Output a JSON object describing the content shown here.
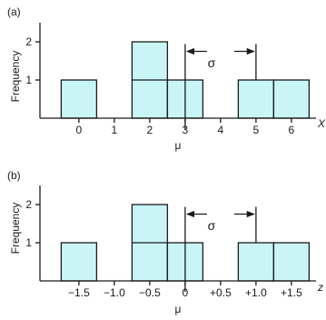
{
  "colors": {
    "bar_fill": "#c9f5f7",
    "bar_stroke": "#1a1a1a",
    "axis": "#1a1a1a"
  },
  "chart_data": [
    {
      "type": "bar",
      "panel_label": "(a)",
      "ylabel": "Frequency",
      "xlabel": "X",
      "mean_label": "μ",
      "sigma_label": "σ",
      "ylim": [
        0,
        2.5
      ],
      "yticks": [
        1,
        2
      ],
      "xlim": [
        -1.1,
        6.9
      ],
      "xticks": [
        {
          "value": 0,
          "label": "0"
        },
        {
          "value": 1,
          "label": "1"
        },
        {
          "value": 2,
          "label": "2"
        },
        {
          "value": 3,
          "label": "3"
        },
        {
          "value": 4,
          "label": "4"
        },
        {
          "value": 5,
          "label": "5"
        },
        {
          "value": 6,
          "label": "6"
        }
      ],
      "bars": [
        {
          "x_start": -0.5,
          "x_end": 0.5,
          "frequency": 1
        },
        {
          "x_start": 1.5,
          "x_end": 2.5,
          "frequency": 2
        },
        {
          "x_start": 2.5,
          "x_end": 3.5,
          "frequency": 1
        },
        {
          "x_start": 4.5,
          "x_end": 5.5,
          "frequency": 1
        },
        {
          "x_start": 5.5,
          "x_end": 6.5,
          "frequency": 1
        }
      ],
      "mean": 3,
      "mean_tick_at": 2,
      "sigma_span": [
        3,
        5
      ],
      "sigma_arrow_y": 1.75
    },
    {
      "type": "bar",
      "panel_label": "(b)",
      "ylabel": "Frequency",
      "xlabel": "z",
      "mean_label": "μ",
      "sigma_label": "σ",
      "ylim": [
        0,
        2.5
      ],
      "yticks": [
        1,
        2
      ],
      "xlim": [
        -2.05,
        1.95
      ],
      "xticks": [
        {
          "value": -1.5,
          "label": "−1.5"
        },
        {
          "value": -1.0,
          "label": "−1.0"
        },
        {
          "value": -0.5,
          "label": "−0.5"
        },
        {
          "value": 0,
          "label": "0"
        },
        {
          "value": 0.5,
          "label": "+0.5"
        },
        {
          "value": 1.0,
          "label": "+1.0"
        },
        {
          "value": 1.5,
          "label": "+1.5"
        }
      ],
      "bars": [
        {
          "x_start": -1.75,
          "x_end": -1.25,
          "frequency": 1
        },
        {
          "x_start": -0.75,
          "x_end": -0.25,
          "frequency": 2
        },
        {
          "x_start": -0.25,
          "x_end": 0.25,
          "frequency": 1
        },
        {
          "x_start": 0.75,
          "x_end": 1.25,
          "frequency": 1
        },
        {
          "x_start": 1.25,
          "x_end": 1.75,
          "frequency": 1
        }
      ],
      "mean": 0,
      "mean_tick_at": -0.5,
      "sigma_span": [
        0,
        1
      ],
      "sigma_arrow_y": 1.75
    }
  ]
}
